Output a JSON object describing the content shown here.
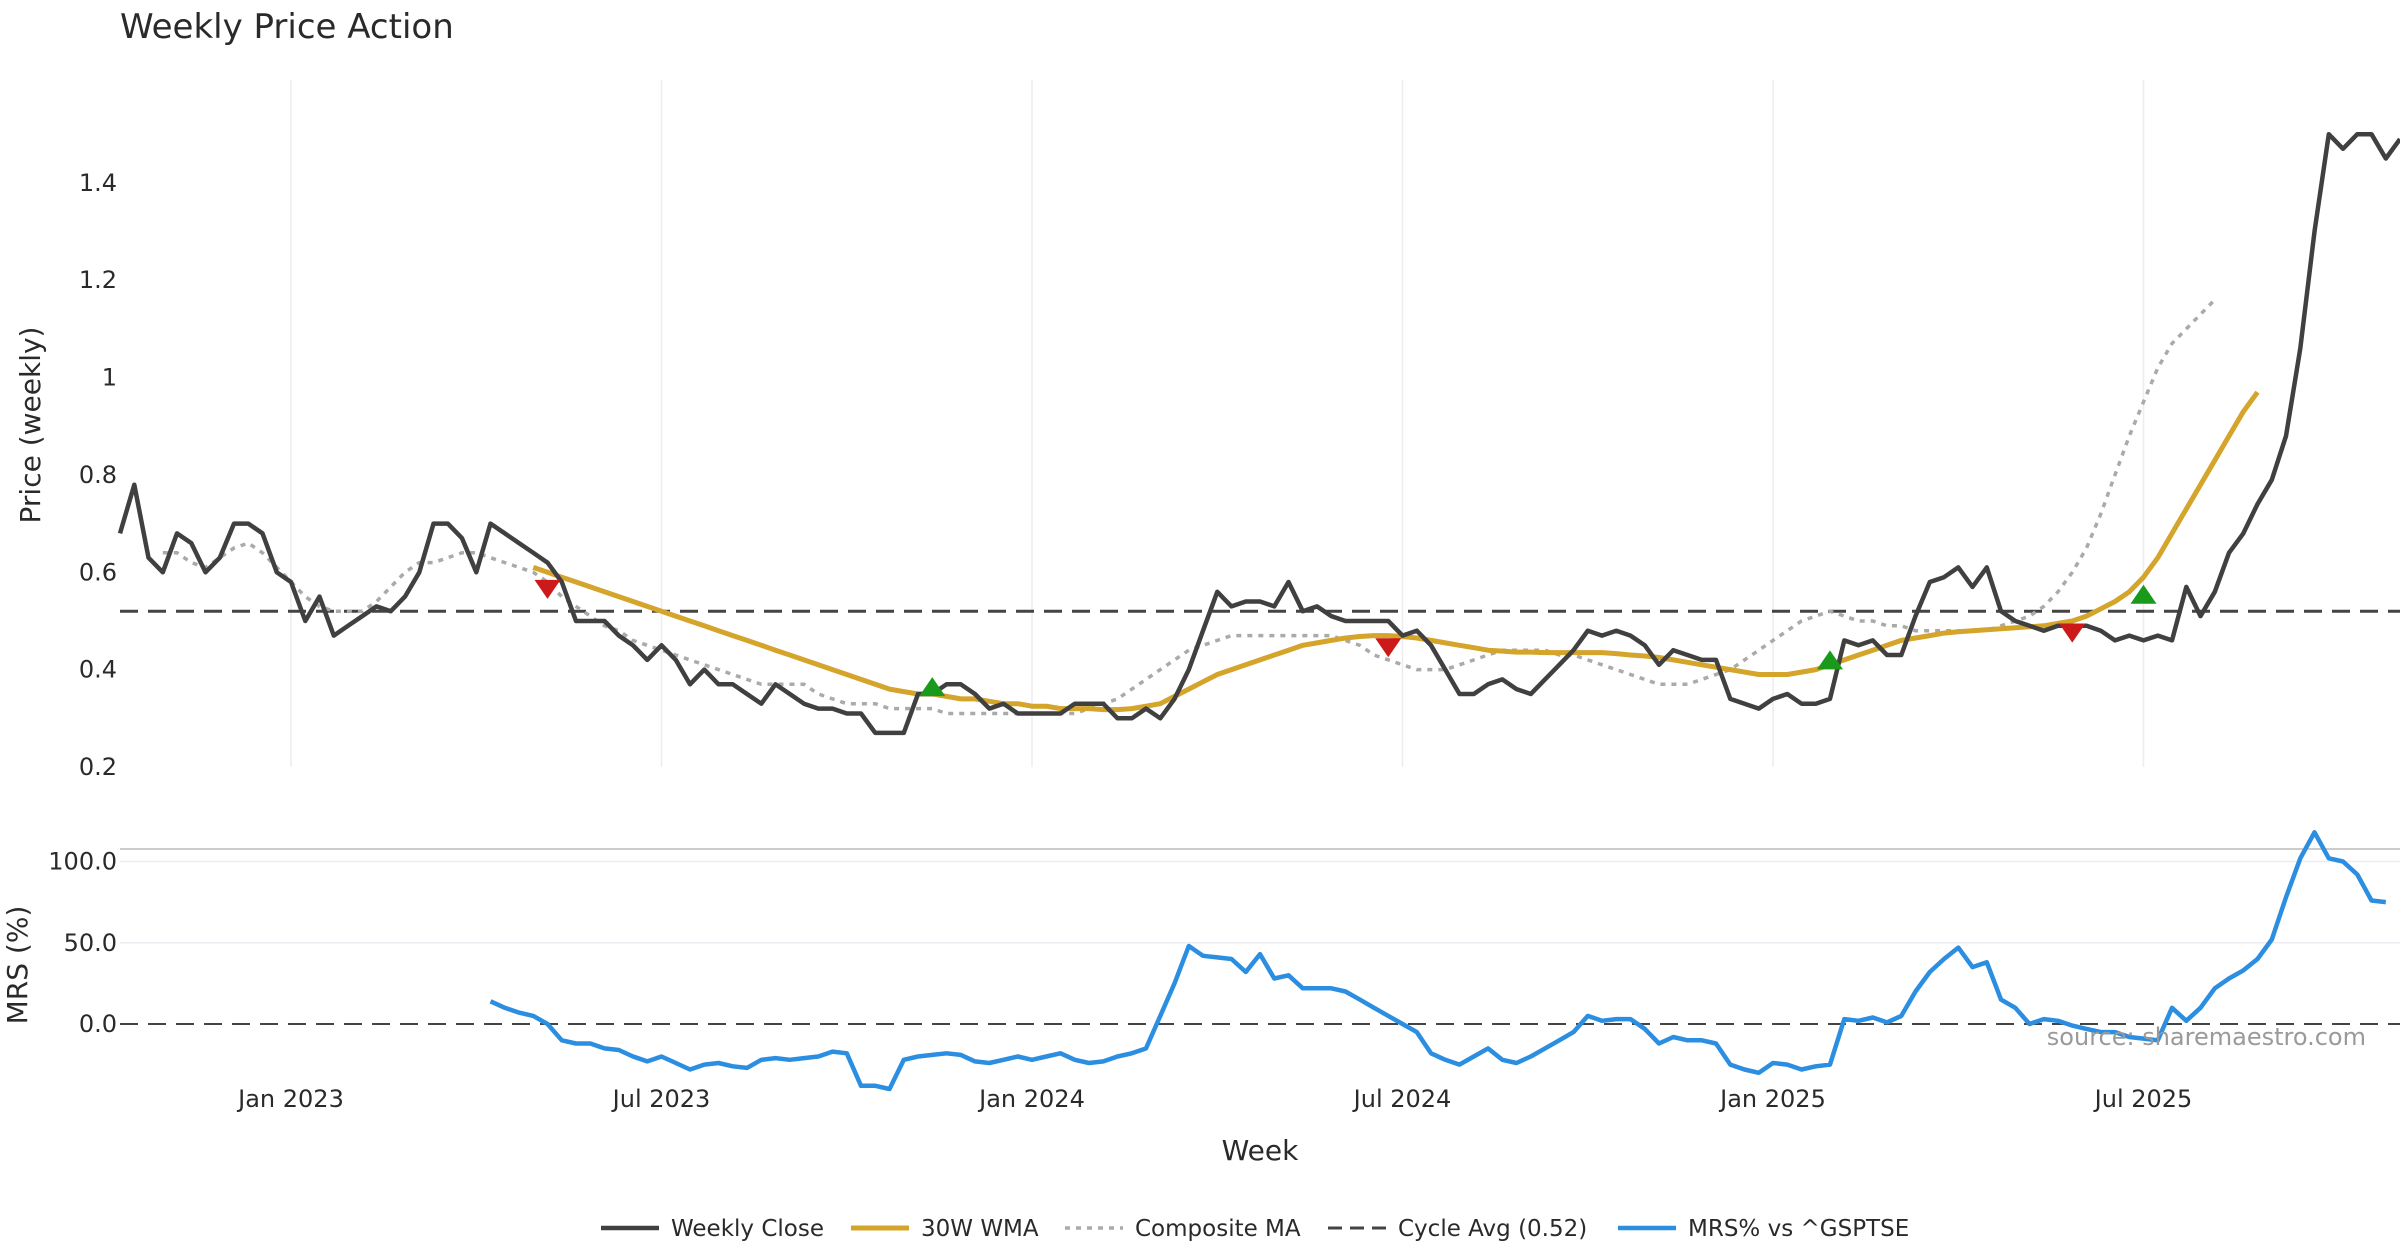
{
  "chart_data": {
    "type": "line",
    "title": "Weekly Price Action",
    "xlabel": "Week",
    "ylabel_top": "Price (weekly)",
    "ylabel_bottom": "MRS (%)",
    "source": "source: sharemaestro.com",
    "x_ticks": [
      "Jan 2023",
      "Jul 2023",
      "Jan 2024",
      "Jul 2024",
      "Jan 2025",
      "Jul 2025"
    ],
    "y_ticks_top": [
      "0.2",
      "0.4",
      "0.6",
      "0.8",
      "1",
      "1.2",
      "1.4"
    ],
    "y_ticks_bottom": [
      "0.0",
      "50.0",
      "100.0"
    ],
    "ylim_top": [
      0.2,
      1.56
    ],
    "ylim_bottom": [
      -40,
      120
    ],
    "cycle_avg": 0.52,
    "legend": [
      "Weekly Close",
      "30W WMA",
      "Composite MA",
      "Cycle Avg (0.52)",
      "MRS% vs ^GSPTSE"
    ],
    "colors": {
      "close": "#404040",
      "wma": "#d4a42b",
      "composite": "#aaaaaa",
      "cycle": "#444444",
      "mrs": "#2b8ee0",
      "up_marker": "#1a9a1a",
      "down_marker": "#cc1a1a",
      "grid": "#ececf2",
      "separator": "#cccccc"
    },
    "series": [
      {
        "name": "Weekly Close",
        "values": [
          0.68,
          0.78,
          0.63,
          0.6,
          0.68,
          0.66,
          0.6,
          0.63,
          0.7,
          0.7,
          0.68,
          0.6,
          0.58,
          0.5,
          0.55,
          0.47,
          0.49,
          0.51,
          0.53,
          0.52,
          0.55,
          0.6,
          0.7,
          0.7,
          0.67,
          0.6,
          0.7,
          0.68,
          0.66,
          0.64,
          0.62,
          0.58,
          0.5,
          0.5,
          0.5,
          0.47,
          0.45,
          0.42,
          0.45,
          0.42,
          0.37,
          0.4,
          0.37,
          0.37,
          0.35,
          0.33,
          0.37,
          0.35,
          0.33,
          0.32,
          0.32,
          0.31,
          0.31,
          0.27,
          0.27,
          0.27,
          0.35,
          0.35,
          0.37,
          0.37,
          0.35,
          0.32,
          0.33,
          0.31,
          0.31,
          0.31,
          0.31,
          0.33,
          0.33,
          0.33,
          0.3,
          0.3,
          0.32,
          0.3,
          0.34,
          0.4,
          0.48,
          0.56,
          0.53,
          0.54,
          0.54,
          0.53,
          0.58,
          0.52,
          0.53,
          0.51,
          0.5,
          0.5,
          0.5,
          0.5,
          0.47,
          0.48,
          0.45,
          0.4,
          0.35,
          0.35,
          0.37,
          0.38,
          0.36,
          0.35,
          0.38,
          0.41,
          0.44,
          0.48,
          0.47,
          0.48,
          0.47,
          0.45,
          0.41,
          0.44,
          0.43,
          0.42,
          0.42,
          0.34,
          0.33,
          0.32,
          0.34,
          0.35,
          0.33,
          0.33,
          0.34,
          0.46,
          0.45,
          0.46,
          0.43,
          0.43,
          0.51,
          0.58,
          0.59,
          0.61,
          0.57,
          0.61,
          0.52,
          0.5,
          0.49,
          0.48,
          0.49,
          0.49,
          0.49,
          0.48,
          0.46,
          0.47,
          0.46,
          0.47,
          0.46,
          0.57,
          0.51,
          0.56,
          0.64,
          0.68,
          0.74,
          0.79,
          0.88,
          1.06,
          1.3,
          1.5,
          1.47,
          1.5,
          1.5,
          1.45,
          1.49
        ]
      },
      {
        "name": "30W WMA",
        "values": [
          null,
          null,
          null,
          null,
          null,
          null,
          null,
          null,
          null,
          null,
          null,
          null,
          null,
          null,
          null,
          null,
          null,
          null,
          null,
          null,
          null,
          null,
          null,
          null,
          null,
          null,
          null,
          null,
          null,
          0.61,
          0.6,
          0.59,
          0.58,
          0.57,
          0.56,
          0.55,
          0.54,
          0.53,
          0.52,
          0.51,
          0.5,
          0.49,
          0.48,
          0.47,
          0.46,
          0.45,
          0.44,
          0.43,
          0.42,
          0.41,
          0.4,
          0.39,
          0.38,
          0.37,
          0.36,
          0.355,
          0.35,
          0.35,
          0.345,
          0.34,
          0.34,
          0.335,
          0.33,
          0.33,
          0.325,
          0.325,
          0.32,
          0.32,
          0.32,
          0.318,
          0.318,
          0.32,
          0.325,
          0.33,
          0.345,
          0.36,
          0.375,
          0.39,
          0.4,
          0.41,
          0.42,
          0.43,
          0.44,
          0.45,
          0.455,
          0.46,
          0.465,
          0.468,
          0.47,
          0.47,
          0.468,
          0.465,
          0.46,
          0.455,
          0.45,
          0.445,
          0.44,
          0.438,
          0.436,
          0.436,
          0.435,
          0.435,
          0.435,
          0.435,
          0.435,
          0.433,
          0.43,
          0.428,
          0.425,
          0.42,
          0.415,
          0.41,
          0.405,
          0.4,
          0.395,
          0.39,
          0.39,
          0.39,
          0.395,
          0.4,
          0.41,
          0.42,
          0.43,
          0.44,
          0.45,
          0.46,
          0.465,
          0.47,
          0.475,
          0.478,
          0.48,
          0.482,
          0.484,
          0.486,
          0.488,
          0.49,
          0.495,
          0.5,
          0.51,
          0.525,
          0.54,
          0.56,
          0.59,
          0.63,
          0.68,
          0.73,
          0.78,
          0.83,
          0.88,
          0.93,
          0.97
        ]
      },
      {
        "name": "Composite MA",
        "values": [
          null,
          null,
          null,
          0.64,
          0.64,
          0.62,
          0.61,
          0.63,
          0.65,
          0.66,
          0.64,
          0.61,
          0.58,
          0.55,
          0.53,
          0.52,
          0.52,
          0.52,
          0.54,
          0.57,
          0.6,
          0.62,
          0.62,
          0.63,
          0.64,
          0.64,
          0.63,
          0.62,
          0.61,
          0.6,
          0.58,
          0.55,
          0.53,
          0.51,
          0.49,
          0.48,
          0.46,
          0.45,
          0.44,
          0.43,
          0.42,
          0.41,
          0.4,
          0.39,
          0.38,
          0.37,
          0.37,
          0.37,
          0.37,
          0.35,
          0.34,
          0.33,
          0.33,
          0.33,
          0.32,
          0.32,
          0.32,
          0.32,
          0.31,
          0.31,
          0.31,
          0.31,
          0.31,
          0.31,
          0.31,
          0.31,
          0.31,
          0.31,
          0.32,
          0.33,
          0.34,
          0.36,
          0.38,
          0.4,
          0.42,
          0.44,
          0.45,
          0.46,
          0.47,
          0.47,
          0.47,
          0.47,
          0.47,
          0.47,
          0.47,
          0.47,
          0.46,
          0.45,
          0.43,
          0.42,
          0.41,
          0.4,
          0.4,
          0.4,
          0.41,
          0.42,
          0.43,
          0.44,
          0.44,
          0.44,
          0.44,
          0.43,
          0.43,
          0.42,
          0.41,
          0.4,
          0.39,
          0.38,
          0.37,
          0.37,
          0.37,
          0.38,
          0.39,
          0.4,
          0.42,
          0.44,
          0.46,
          0.48,
          0.5,
          0.51,
          0.52,
          0.51,
          0.5,
          0.5,
          0.49,
          0.49,
          0.48,
          0.48,
          0.48,
          0.48,
          0.48,
          0.48,
          0.49,
          0.5,
          0.51,
          0.53,
          0.56,
          0.6,
          0.65,
          0.72,
          0.8,
          0.88,
          0.95,
          1.02,
          1.07,
          1.1,
          1.13,
          1.16
        ]
      },
      {
        "name": "MRS% vs ^GSPTSE",
        "values": [
          null,
          null,
          null,
          null,
          null,
          null,
          null,
          null,
          null,
          null,
          null,
          null,
          null,
          null,
          null,
          null,
          null,
          null,
          null,
          null,
          null,
          null,
          null,
          null,
          null,
          null,
          14,
          10,
          7,
          5,
          0,
          -10,
          -12,
          -12,
          -15,
          -16,
          -20,
          -23,
          -20,
          -24,
          -28,
          -25,
          -24,
          -26,
          -27,
          -22,
          -21,
          -22,
          -21,
          -20,
          -17,
          -18,
          -38,
          -38,
          -40,
          -22,
          -20,
          -19,
          -18,
          -19,
          -23,
          -24,
          -22,
          -20,
          -22,
          -20,
          -18,
          -22,
          -24,
          -23,
          -20,
          -18,
          -15,
          5,
          25,
          48,
          42,
          41,
          40,
          32,
          43,
          28,
          30,
          22,
          22,
          22,
          20,
          15,
          10,
          5,
          0,
          -5,
          -18,
          -22,
          -25,
          -20,
          -15,
          -22,
          -24,
          -20,
          -15,
          -10,
          -5,
          5,
          2,
          3,
          3,
          -3,
          -12,
          -8,
          -10,
          -10,
          -12,
          -25,
          -28,
          -30,
          -24,
          -25,
          -28,
          -26,
          -25,
          3,
          2,
          4,
          1,
          5,
          20,
          32,
          40,
          47,
          35,
          38,
          15,
          10,
          0,
          3,
          2,
          -1,
          -3,
          -5,
          -5,
          -8,
          -9,
          -10,
          10,
          2,
          10,
          22,
          28,
          33,
          40,
          52,
          78,
          102,
          118,
          102,
          100,
          92,
          76,
          75
        ]
      }
    ],
    "signals": [
      {
        "type": "down",
        "index": 30,
        "value": 0.565
      },
      {
        "type": "up",
        "index": 57,
        "value": 0.365
      },
      {
        "type": "down",
        "index": 89,
        "value": 0.445
      },
      {
        "type": "up",
        "index": 120,
        "value": 0.42
      },
      {
        "type": "down",
        "index": 137,
        "value": 0.475
      },
      {
        "type": "up",
        "index": 142,
        "value": 0.555
      }
    ]
  }
}
